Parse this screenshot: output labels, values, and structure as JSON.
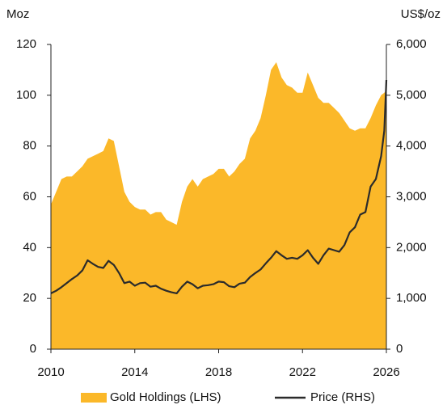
{
  "chart_data": {
    "type": "area_line",
    "ylabel": "Moz",
    "y2label": "US$/oz",
    "x": [
      2010,
      2010.25,
      2010.5,
      2010.75,
      2011,
      2011.25,
      2011.5,
      2011.75,
      2012,
      2012.25,
      2012.5,
      2012.75,
      2013,
      2013.25,
      2013.5,
      2013.75,
      2014,
      2014.25,
      2014.5,
      2014.75,
      2015,
      2015.25,
      2015.5,
      2015.75,
      2016,
      2016.25,
      2016.5,
      2016.75,
      2017,
      2017.25,
      2017.5,
      2017.75,
      2018,
      2018.25,
      2018.5,
      2018.75,
      2019,
      2019.25,
      2019.5,
      2019.75,
      2020,
      2020.25,
      2020.5,
      2020.75,
      2021,
      2021.25,
      2021.5,
      2021.75,
      2022,
      2022.25,
      2022.5,
      2022.75,
      2023,
      2023.25,
      2023.5,
      2023.75,
      2024,
      2024.25,
      2024.5,
      2024.75,
      2025,
      2025.25,
      2025.5,
      2025.75,
      2025.9,
      2026
    ],
    "series": [
      {
        "name": "Gold Holdings (LHS)",
        "color": "#fbb829",
        "kind": "area",
        "axis": "y",
        "values": [
          57,
          62,
          67,
          68,
          68,
          70,
          72,
          75,
          76,
          77,
          78,
          83,
          82,
          72,
          62,
          58,
          56,
          55,
          55,
          53,
          54,
          54,
          51,
          50,
          49,
          58,
          64,
          67,
          64,
          67,
          68,
          69,
          71,
          71,
          68,
          70,
          73,
          75,
          83,
          86,
          91,
          100,
          110,
          113,
          107,
          104,
          103,
          101,
          101,
          109,
          104,
          99,
          97,
          97,
          95,
          93,
          90,
          87,
          86,
          87,
          87,
          91,
          96,
          100,
          101,
          102
        ]
      },
      {
        "name": "Price (RHS)",
        "color": "#2b2b2b",
        "kind": "line",
        "axis": "y2",
        "values": [
          1100,
          1150,
          1220,
          1300,
          1380,
          1450,
          1550,
          1750,
          1680,
          1620,
          1600,
          1740,
          1660,
          1500,
          1300,
          1330,
          1250,
          1300,
          1310,
          1230,
          1250,
          1190,
          1150,
          1120,
          1100,
          1230,
          1330,
          1280,
          1200,
          1250,
          1260,
          1280,
          1330,
          1320,
          1240,
          1220,
          1290,
          1310,
          1420,
          1500,
          1570,
          1690,
          1800,
          1930,
          1850,
          1780,
          1800,
          1780,
          1850,
          1950,
          1800,
          1680,
          1850,
          1980,
          1950,
          1920,
          2050,
          2300,
          2400,
          2650,
          2700,
          3200,
          3350,
          3800,
          4300,
          5300
        ]
      }
    ],
    "xlim": [
      2010,
      2026
    ],
    "xticks": [
      2010,
      2014,
      2018,
      2022,
      2026
    ],
    "ylim": [
      0,
      120
    ],
    "yticks": [
      0,
      20,
      40,
      60,
      80,
      100,
      120
    ],
    "y2lim": [
      0,
      6000
    ],
    "y2ticks": [
      0,
      {
        "value": 1000,
        "label": "1,000"
      },
      {
        "value": 2000,
        "label": "2,000"
      },
      {
        "value": 3000,
        "label": "3,000"
      },
      {
        "value": 4000,
        "label": "4,000"
      },
      {
        "value": 5000,
        "label": "5,000"
      },
      {
        "value": 6000,
        "label": "6,000"
      }
    ],
    "legend": "bottom"
  }
}
